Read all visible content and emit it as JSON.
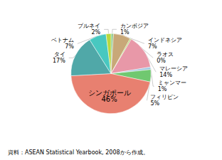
{
  "chart_data": {
    "type": "pie",
    "categories": [
      "カンボジア\n1%",
      "インドネシア\n7%",
      "ラオス\n0%",
      "マレーシア\n14%",
      "ミャンマー\n1%",
      "フィリピン\n5%",
      "シンガポール\n46%",
      "タイ\n17%",
      "ベトナム\n7%",
      "ブルネイ\n2%"
    ],
    "values": [
      1,
      7,
      0.5,
      14,
      1,
      5,
      46,
      17,
      7,
      2
    ],
    "colors": [
      "#8dca8d",
      "#c8a878",
      "#a8d860",
      "#e898a8",
      "#a0c8e0",
      "#70c870",
      "#e88070",
      "#50a8a8",
      "#48c8c0",
      "#b8d840"
    ],
    "annotations": [
      "資料：ASEAN Statistical Yearbook, 2008から作成。"
    ]
  }
}
